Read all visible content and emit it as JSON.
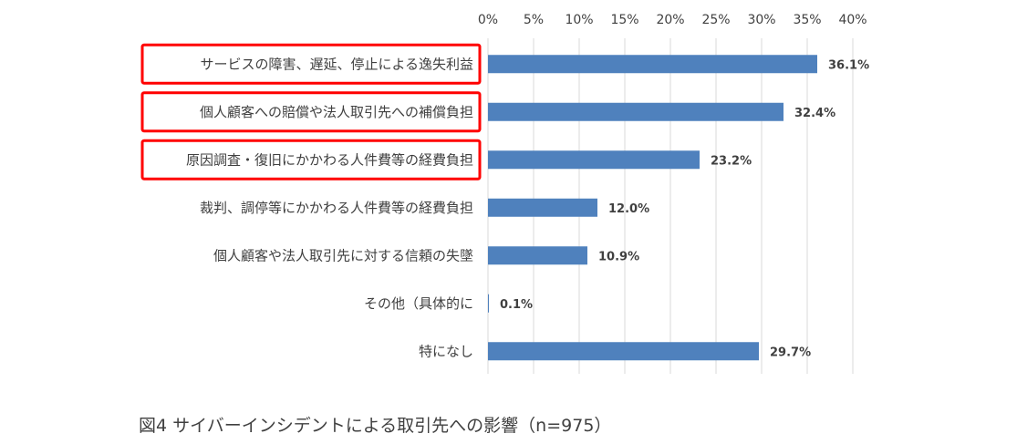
{
  "chart_data": {
    "type": "bar",
    "orientation": "horizontal",
    "categories": [
      "サービスの障害、遅延、停止による逸失利益",
      "個人顧客への賠償や法人取引先への補償負担",
      "原因調査・復旧にかかわる人件費等の経費負担",
      "裁判、調停等にかかわる人件費等の経費負担",
      "個人顧客や法人取引先に対する信頼の失墜",
      "その他（具体的に",
      "特になし"
    ],
    "values": [
      36.1,
      32.4,
      23.2,
      12.0,
      10.9,
      0.1,
      29.7
    ],
    "data_labels": [
      "36.1%",
      "32.4%",
      "23.2%",
      "12.0%",
      "10.9%",
      "0.1%",
      "29.7%"
    ],
    "xlim": [
      0,
      40
    ],
    "x_ticks": [
      0,
      5,
      10,
      15,
      20,
      25,
      30,
      35,
      40
    ],
    "x_tick_labels": [
      "0%",
      "5%",
      "10%",
      "15%",
      "20%",
      "25%",
      "30%",
      "35%",
      "40%"
    ],
    "x_axis_position": "top",
    "grid": "vertical",
    "highlighted_categories": [
      0,
      1,
      2
    ],
    "colors": {
      "bar": "#4f81bd",
      "grid": "#d9d9d9",
      "highlight": "#ff0000",
      "text": "#404040"
    }
  },
  "caption": "図4 サイバーインシデントによる取引先への影響（n=975）"
}
